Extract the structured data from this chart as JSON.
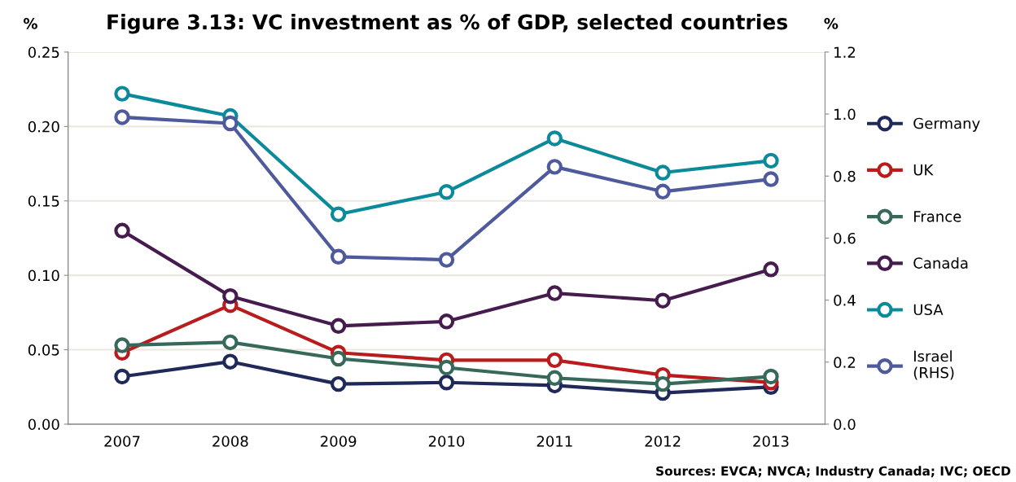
{
  "chart_data": {
    "type": "line",
    "title": "Figure 3.13: VC investment as % of GDP, selected countries",
    "ylabel": "%",
    "y2label": "%",
    "categories": [
      "2007",
      "2008",
      "2009",
      "2010",
      "2011",
      "2012",
      "2013"
    ],
    "series": [
      {
        "name": "Germany",
        "color": "#1f2a5a",
        "values": [
          0.032,
          0.042,
          0.027,
          0.028,
          0.026,
          0.021,
          0.025
        ]
      },
      {
        "name": "UK",
        "color": "#b91c1c",
        "values": [
          0.048,
          0.08,
          0.048,
          0.043,
          0.043,
          0.033,
          0.028
        ]
      },
      {
        "name": "France",
        "color": "#36695a",
        "values": [
          0.053,
          0.055,
          0.044,
          0.038,
          0.031,
          0.027,
          0.032
        ]
      },
      {
        "name": "Canada",
        "color": "#461c4f",
        "values": [
          0.13,
          0.086,
          0.066,
          0.069,
          0.088,
          0.083,
          0.104
        ]
      },
      {
        "name": "USA",
        "color": "#0a8a9a",
        "values": [
          0.222,
          0.207,
          0.141,
          0.156,
          0.192,
          0.169,
          0.177
        ]
      },
      {
        "name": "Israel\n(RHS)",
        "color": "#4e5a9c",
        "axis": "y2",
        "values": [
          0.99,
          0.97,
          0.54,
          0.53,
          0.83,
          0.75,
          0.79
        ]
      }
    ],
    "ylim": [
      0,
      0.25
    ],
    "yticks": [
      {
        "value": 0,
        "label": "0.00"
      },
      {
        "value": 0.05,
        "label": "0.05"
      },
      {
        "value": 0.1,
        "label": "0.10"
      },
      {
        "value": 0.15,
        "label": "0.15"
      },
      {
        "value": 0.2,
        "label": "0.20"
      },
      {
        "value": 0.25,
        "label": "0.25"
      }
    ],
    "y2lim": [
      0,
      1.2
    ],
    "y2ticks": [
      {
        "value": 0,
        "label": "0.0"
      },
      {
        "value": 0.2,
        "label": "0.2"
      },
      {
        "value": 0.4,
        "label": "0.4"
      },
      {
        "value": 0.6,
        "label": "0.6"
      },
      {
        "value": 0.8,
        "label": "0.8"
      },
      {
        "value": 1.0,
        "label": "1.0"
      },
      {
        "value": 1.2,
        "label": "1.2"
      }
    ],
    "grid": "y",
    "legend": "right",
    "marker": "circle",
    "line_style": "solid",
    "annotations": [
      "Sources: EVCA; NVCA; Industry Canada; IVC; OECD"
    ]
  }
}
